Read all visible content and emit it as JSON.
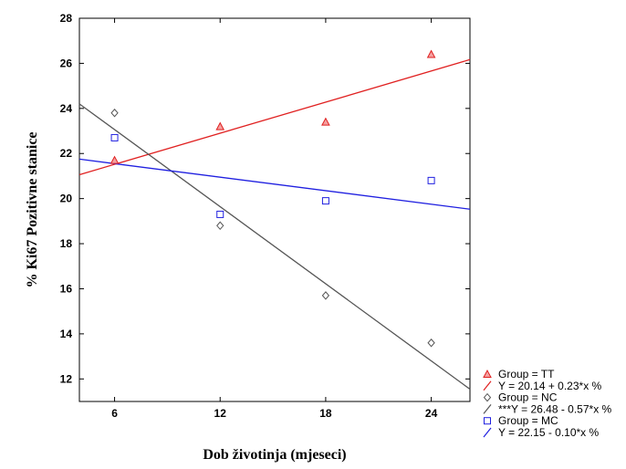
{
  "chart_data": {
    "type": "scatter",
    "title": "",
    "xlabel": "Dob životinja (mjeseci)",
    "ylabel": "% Ki67 Pozitivne stanice",
    "xlim": [
      4,
      26.2
    ],
    "ylim": [
      11,
      28
    ],
    "x_ticks": [
      6,
      12,
      18,
      24
    ],
    "y_ticks": [
      12,
      14,
      16,
      18,
      20,
      22,
      24,
      26,
      28
    ],
    "grid": false,
    "legend_position": "bottom-right",
    "series": [
      {
        "name": "Group = TT",
        "marker": "triangle",
        "color": "#e02020",
        "x": [
          6,
          12,
          18,
          24
        ],
        "y": [
          21.7,
          23.2,
          23.4,
          26.4
        ],
        "fit": {
          "label": "Y = 20.14 + 0.23*x %",
          "intercept": 20.14,
          "slope": 0.23
        }
      },
      {
        "name": "Group = NC",
        "marker": "diamond",
        "color": "#555555",
        "x": [
          6,
          12,
          18,
          24
        ],
        "y": [
          23.8,
          18.8,
          15.7,
          13.6
        ],
        "fit": {
          "label": "***Y = 26.48 - 0.57*x %",
          "intercept": 26.48,
          "slope": -0.57
        }
      },
      {
        "name": "Group = MC",
        "marker": "square",
        "color": "#2020e0",
        "x": [
          6,
          12,
          18,
          24
        ],
        "y": [
          22.7,
          19.3,
          19.9,
          20.8
        ],
        "fit": {
          "label": "Y = 22.15 - 0.10*x %",
          "intercept": 22.15,
          "slope": -0.1
        }
      }
    ]
  }
}
